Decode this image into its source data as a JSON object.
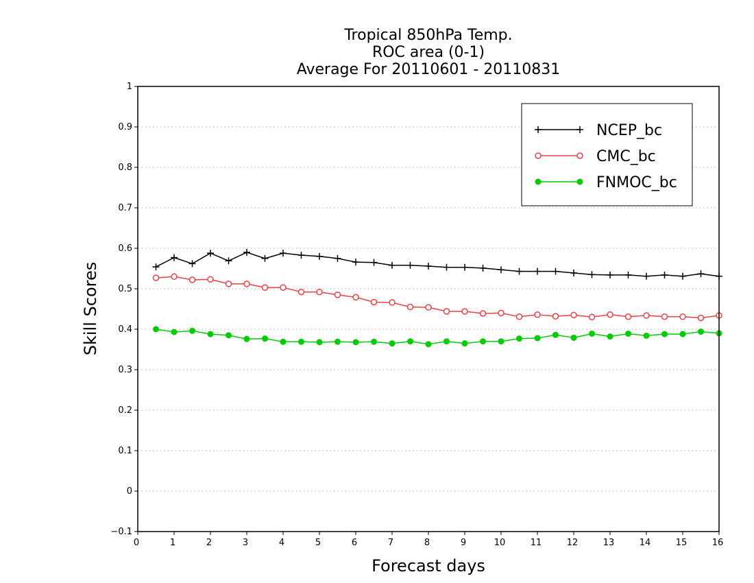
{
  "chart_data": {
    "type": "line",
    "title": [
      "Tropical 850hPa Temp.",
      "ROC area (0-1)",
      "Average For 20110601 - 20110831"
    ],
    "xlabel": "Forecast days",
    "ylabel": "Skill Scores",
    "xlim": [
      0,
      16
    ],
    "ylim": [
      -0.1,
      1
    ],
    "xticks": [
      "0",
      "1",
      "2",
      "3",
      "4",
      "5",
      "6",
      "7",
      "8",
      "9",
      "10",
      "11",
      "12",
      "13",
      "14",
      "15",
      "16"
    ],
    "yticks": [
      "−0.1",
      "0",
      "0.1",
      "0.2",
      "0.3",
      "0.4",
      "0.5",
      "0.6",
      "0.7",
      "0.8",
      "0.9",
      "1"
    ],
    "grid": true,
    "legend_position": "top-right",
    "x": [
      0.5,
      1,
      1.5,
      2,
      2.5,
      3,
      3.5,
      4,
      4.5,
      5,
      5.5,
      6,
      6.5,
      7,
      7.5,
      8,
      8.5,
      9,
      9.5,
      10,
      10.5,
      11,
      11.5,
      12,
      12.5,
      13,
      13.5,
      14,
      14.5,
      15,
      15.5,
      16
    ],
    "series": [
      {
        "name": "NCEP_bc",
        "color": "#000000",
        "marker": "plus",
        "values": [
          0.554,
          0.577,
          0.562,
          0.588,
          0.569,
          0.59,
          0.575,
          0.588,
          0.583,
          0.58,
          0.575,
          0.566,
          0.565,
          0.558,
          0.558,
          0.556,
          0.553,
          0.553,
          0.551,
          0.547,
          0.543,
          0.543,
          0.543,
          0.539,
          0.535,
          0.534,
          0.534,
          0.531,
          0.534,
          0.531,
          0.537,
          0.531
        ]
      },
      {
        "name": "CMC_bc",
        "color": "#ee4040",
        "marker": "open-circle",
        "values": [
          0.527,
          0.53,
          0.522,
          0.523,
          0.512,
          0.512,
          0.503,
          0.503,
          0.492,
          0.492,
          0.485,
          0.479,
          0.467,
          0.466,
          0.455,
          0.454,
          0.444,
          0.444,
          0.439,
          0.44,
          0.431,
          0.436,
          0.432,
          0.435,
          0.43,
          0.436,
          0.431,
          0.434,
          0.431,
          0.431,
          0.428,
          0.434
        ]
      },
      {
        "name": "FNMOC_bc",
        "color": "#00cc00",
        "marker": "filled-circle",
        "values": [
          0.4,
          0.393,
          0.396,
          0.388,
          0.385,
          0.376,
          0.377,
          0.369,
          0.369,
          0.368,
          0.369,
          0.368,
          0.369,
          0.365,
          0.37,
          0.363,
          0.37,
          0.365,
          0.37,
          0.37,
          0.377,
          0.378,
          0.386,
          0.379,
          0.389,
          0.382,
          0.389,
          0.384,
          0.388,
          0.388,
          0.394,
          0.39
        ]
      }
    ]
  }
}
